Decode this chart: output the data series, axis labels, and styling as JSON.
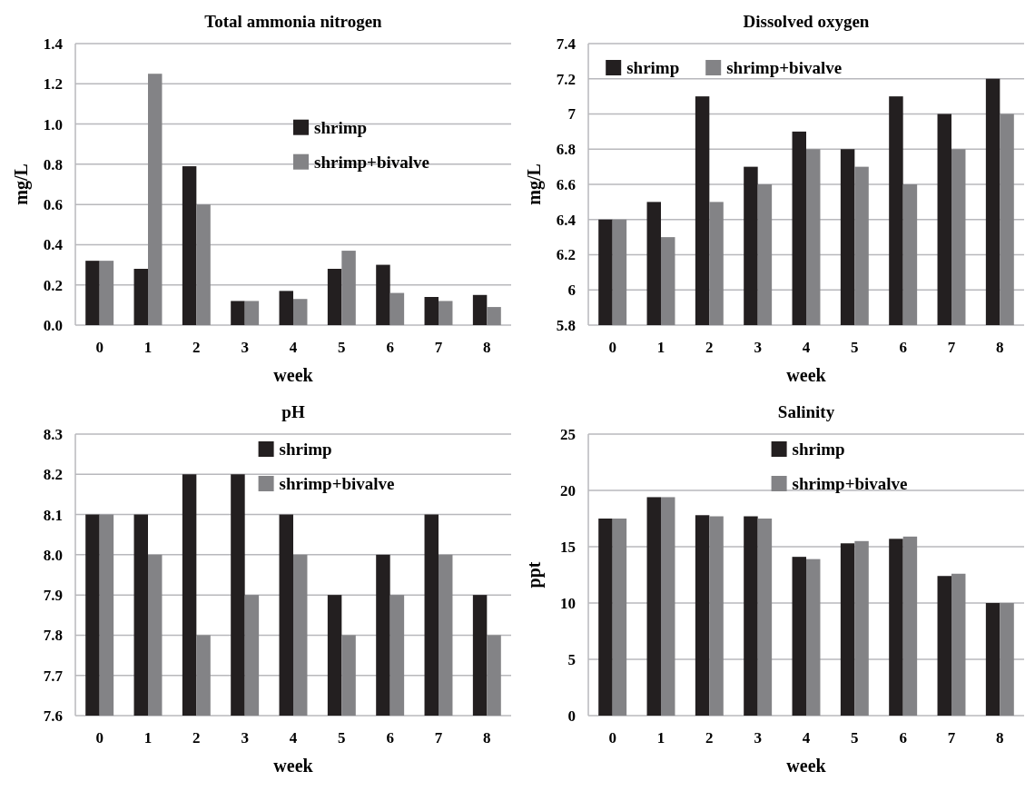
{
  "chart_data": [
    {
      "type": "bar",
      "title": "Total ammonia nitrogen",
      "xlabel": "week",
      "ylabel": "mg/L",
      "categories": [
        "0",
        "1",
        "2",
        "3",
        "4",
        "5",
        "6",
        "7",
        "8"
      ],
      "series": [
        {
          "name": "shrimp",
          "color": "#231f20",
          "values": [
            0.32,
            0.28,
            0.79,
            0.12,
            0.17,
            0.28,
            0.3,
            0.14,
            0.15
          ]
        },
        {
          "name": "shrimp+bivalve",
          "color": "#838386",
          "values": [
            0.32,
            1.25,
            0.6,
            0.12,
            0.13,
            0.37,
            0.16,
            0.12,
            0.09
          ]
        }
      ],
      "ylim": [
        0,
        1.4
      ],
      "yticks": [
        {
          "value": 0,
          "label": "0.0"
        },
        0.2,
        0.4,
        0.6,
        0.8,
        {
          "value": 1,
          "label": "1.0"
        },
        1.2,
        1.4
      ],
      "grid": "y",
      "legend": "right"
    },
    {
      "type": "bar",
      "title": "Dissolved oxygen",
      "xlabel": "week",
      "ylabel": "mg/L",
      "categories": [
        "0",
        "1",
        "2",
        "3",
        "4",
        "5",
        "6",
        "7",
        "8"
      ],
      "series": [
        {
          "name": "shrimp",
          "color": "#231f20",
          "values": [
            6.4,
            6.5,
            7.1,
            6.7,
            6.9,
            6.8,
            7.1,
            7.0,
            7.2
          ]
        },
        {
          "name": "shrimp+bivalve",
          "color": "#838386",
          "values": [
            6.4,
            6.3,
            6.5,
            6.6,
            6.8,
            6.7,
            6.6,
            6.8,
            7.0
          ]
        }
      ],
      "ylim": [
        5.8,
        7.4
      ],
      "yticks": [
        5.8,
        6,
        6.2,
        6.4,
        6.6,
        6.8,
        7,
        7.2,
        7.4
      ],
      "grid": "y",
      "legend": "top left"
    },
    {
      "type": "bar",
      "title": "pH",
      "xlabel": "week",
      "categories": [
        "0",
        "1",
        "2",
        "3",
        "4",
        "5",
        "6",
        "7",
        "8"
      ],
      "series": [
        {
          "name": "shrimp",
          "color": "#231f20",
          "values": [
            8.1,
            8.1,
            8.2,
            8.2,
            8.1,
            7.9,
            8.0,
            8.1,
            7.9
          ]
        },
        {
          "name": "shrimp+bivalve",
          "color": "#838386",
          "values": [
            8.1,
            8.0,
            7.8,
            7.9,
            8.0,
            7.8,
            7.9,
            8.0,
            7.8
          ]
        }
      ],
      "ylim": [
        7.6,
        8.3
      ],
      "yticks": [
        7.6,
        7.7,
        7.8,
        7.9,
        {
          "value": 8,
          "label": "8.0"
        },
        8.1,
        8.2,
        8.3
      ],
      "grid": "y",
      "legend": "top"
    },
    {
      "type": "bar",
      "title": "Salinity",
      "xlabel": "week",
      "ylabel": "ppt",
      "categories": [
        "0",
        "1",
        "2",
        "3",
        "4",
        "5",
        "6",
        "7",
        "8"
      ],
      "series": [
        {
          "name": "shrimp",
          "color": "#231f20",
          "values": [
            17.5,
            19.4,
            17.8,
            17.7,
            14.1,
            15.3,
            15.7,
            12.4,
            10.0
          ]
        },
        {
          "name": "shrimp+bivalve",
          "color": "#838386",
          "values": [
            17.5,
            19.4,
            17.7,
            17.5,
            13.9,
            15.5,
            15.9,
            12.6,
            10.0
          ]
        }
      ],
      "ylim": [
        0,
        25
      ],
      "yticks": [
        0,
        5,
        10,
        15,
        20,
        25
      ],
      "grid": "y",
      "legend": "top"
    }
  ]
}
